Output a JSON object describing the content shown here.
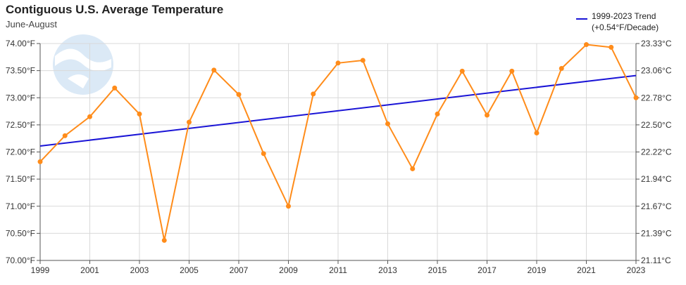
{
  "header": {
    "title": "Contiguous U.S. Average Temperature",
    "subtitle": "June-August",
    "legend_line1": "1999-2023 Trend",
    "legend_line2": "(+0.54°F/Decade)"
  },
  "colors": {
    "series": "#ff8c1a",
    "trend": "#1a14d6",
    "grid": "#d9d9d9",
    "watermark": "#dbe9f6"
  },
  "icons": {
    "watermark": "noaa-logo-watermark"
  },
  "chart_data": {
    "type": "line",
    "title": "Contiguous U.S. Average Temperature",
    "subtitle": "June-August",
    "x": [
      1999,
      2000,
      2001,
      2002,
      2003,
      2004,
      2005,
      2006,
      2007,
      2008,
      2009,
      2010,
      2011,
      2012,
      2013,
      2014,
      2015,
      2016,
      2017,
      2018,
      2019,
      2020,
      2021,
      2022,
      2023
    ],
    "series": [
      {
        "values": [
          71.82,
          72.3,
          72.65,
          73.18,
          72.7,
          70.37,
          72.55,
          73.51,
          73.06,
          71.97,
          71.0,
          73.07,
          73.64,
          73.69,
          72.52,
          71.69,
          72.7,
          73.49,
          72.68,
          73.49,
          72.35,
          73.54,
          73.98,
          73.93,
          73.0
        ]
      }
    ],
    "trend": {
      "name": "1999-2023 Trend",
      "label": "(+0.54°F/Decade)",
      "start": [
        1999,
        72.11
      ],
      "end": [
        2023,
        73.41
      ]
    },
    "xticks": [
      "1999",
      "2001",
      "2003",
      "2005",
      "2007",
      "2009",
      "2011",
      "2013",
      "2015",
      "2017",
      "2019",
      "2021",
      "2023"
    ],
    "xtick_values": [
      1999,
      2001,
      2003,
      2005,
      2007,
      2009,
      2011,
      2013,
      2015,
      2017,
      2019,
      2021,
      2023
    ],
    "yticks_left": [
      "74.00°F",
      "73.50°F",
      "73.00°F",
      "72.50°F",
      "72.00°F",
      "71.50°F",
      "71.00°F",
      "70.50°F",
      "70.00°F"
    ],
    "ytick_left_values": [
      74.0,
      73.5,
      73.0,
      72.5,
      72.0,
      71.5,
      71.0,
      70.5,
      70.0
    ],
    "yticks_right": [
      "23.33°C",
      "23.06°C",
      "22.78°C",
      "22.50°C",
      "22.22°C",
      "21.94°C",
      "21.67°C",
      "21.39°C",
      "21.11°C"
    ],
    "xlim": [
      1999,
      2023
    ],
    "ylim": [
      70,
      74
    ],
    "grid": true,
    "legend_position": "top-right"
  }
}
